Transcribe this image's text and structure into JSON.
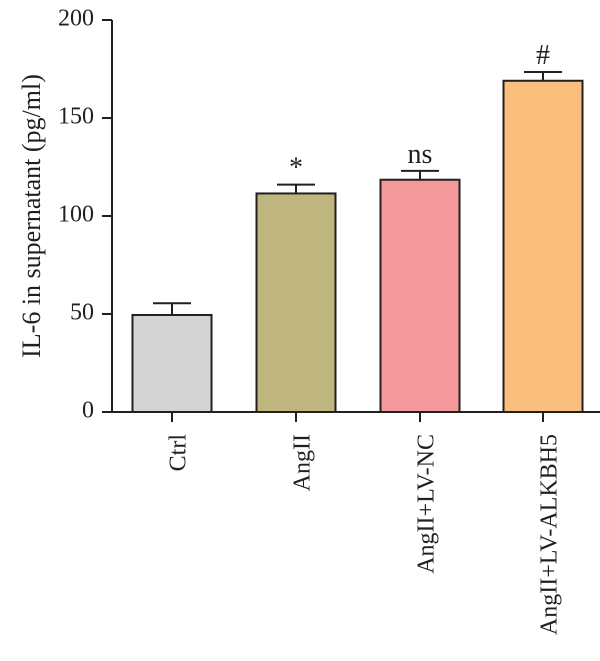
{
  "chart_data": {
    "type": "bar",
    "title": "",
    "xlabel": "",
    "ylabel": "IL-6 in supernatant (pg/ml)",
    "ylim": [
      0,
      200
    ],
    "yticks": [
      0,
      50,
      100,
      150,
      200
    ],
    "grid": false,
    "categories": [
      "Ctrl",
      "AngII",
      "AngII+LV-NC",
      "AngII+LV-ALKBH5"
    ],
    "values": [
      49.5,
      111.5,
      118.5,
      169
    ],
    "error": [
      6,
      4.5,
      4.5,
      4.5
    ],
    "annotations": [
      "",
      "*",
      "ns",
      "#"
    ],
    "colors": [
      "#d4d4d4",
      "#bfb57f",
      "#f4999b",
      "#fbbf7d"
    ]
  }
}
